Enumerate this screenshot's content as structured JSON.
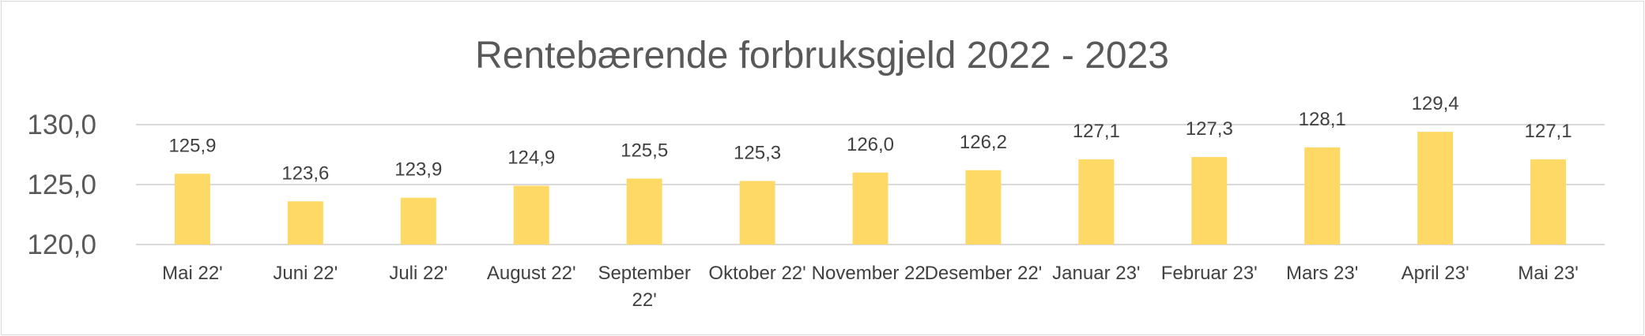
{
  "chart_data": {
    "type": "bar",
    "title": "Rentebærende forbruksgjeld 2022 - 2023",
    "xlabel": "",
    "ylabel": "",
    "categories": [
      "Mai 22'",
      "Juni 22'",
      "Juli 22'",
      "August 22'",
      "September 22'",
      "Oktober 22'",
      "November 22'",
      "Desember 22'",
      "Januar 23'",
      "Februar 23'",
      "Mars 23'",
      "April 23'",
      "Mai 23'"
    ],
    "values": [
      125.9,
      123.6,
      123.9,
      124.9,
      125.5,
      125.3,
      126.0,
      126.2,
      127.1,
      127.3,
      128.1,
      129.4,
      127.1
    ],
    "data_labels": [
      "125,9",
      "123,6",
      "123,9",
      "124,9",
      "125,5",
      "125,3",
      "126,0",
      "126,2",
      "127,1",
      "127,3",
      "128,1",
      "129,4",
      "127,1"
    ],
    "yticks": [
      120,
      125,
      130
    ],
    "ytick_labels": [
      "120,0",
      "125,0",
      "130,0"
    ],
    "ylim": [
      120,
      130
    ],
    "grid": true,
    "legend": "none",
    "colors": {
      "bar": "#ffd966",
      "gridline": "#d9d9d9",
      "title": "#595959",
      "axis_text": "#595959",
      "label_text": "#404040"
    }
  }
}
